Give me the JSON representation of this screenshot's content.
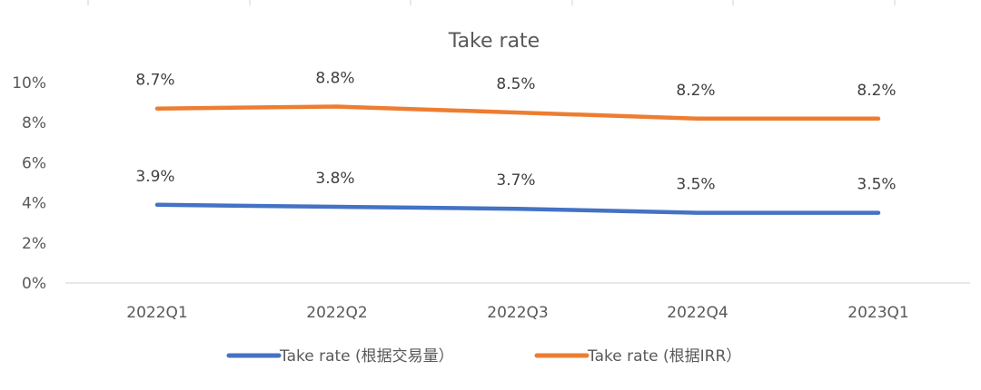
{
  "chart_data": {
    "type": "line",
    "title": "Take rate",
    "categories": [
      "2022Q1",
      "2022Q2",
      "2022Q3",
      "2022Q4",
      "2023Q1"
    ],
    "series": [
      {
        "name": "Take rate (根据交易量）",
        "color": "#4472C4",
        "values": [
          3.9,
          3.8,
          3.7,
          3.5,
          3.5
        ],
        "labels": [
          "3.9%",
          "3.8%",
          "3.7%",
          "3.5%",
          "3.5%"
        ]
      },
      {
        "name": "Take rate (根据IRR）",
        "color": "#ED7D31",
        "values": [
          8.7,
          8.8,
          8.5,
          8.2,
          8.2
        ],
        "labels": [
          "8.7%",
          "8.8%",
          "8.5%",
          "8.2%",
          "8.2%"
        ]
      }
    ],
    "xlabel": "",
    "ylabel": "",
    "ylim": [
      0,
      10
    ],
    "yticks": [
      "0%",
      "2%",
      "4%",
      "6%",
      "8%",
      "10%"
    ],
    "grid": false,
    "legend_position": "bottom",
    "unit": "%"
  },
  "axis_color": "#D9D9D9",
  "cell_border_color": "#D0D0D0"
}
